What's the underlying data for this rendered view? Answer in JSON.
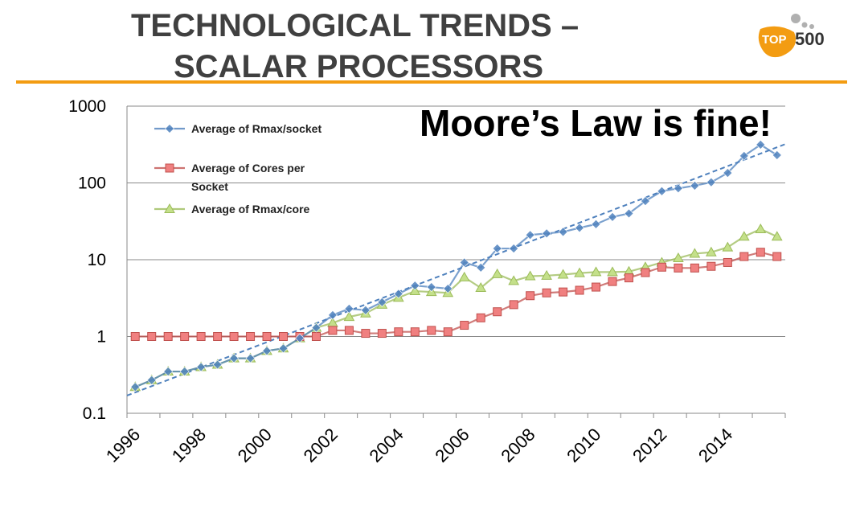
{
  "header": {
    "title_line1": "TECHNOLOGICAL TRENDS –",
    "title_line2": "SCALAR PROCESSORS",
    "logo_text_top": "TOP",
    "logo_text_num": "500",
    "accent_color": "#f39c12"
  },
  "chart_data": {
    "type": "line",
    "title": "Moore’s Law is fine!",
    "y_scale": "log",
    "ylim": [
      0.1,
      1000
    ],
    "y_ticks": [
      "0.1",
      "1",
      "10",
      "100",
      "1000"
    ],
    "y_tick_values": [
      0.1,
      1,
      10,
      100,
      1000
    ],
    "xlim": [
      1996,
      2016
    ],
    "x_ticks": [
      "1996",
      "1998",
      "2000",
      "2002",
      "2004",
      "2006",
      "2008",
      "2010",
      "2012",
      "2014"
    ],
    "x_tick_values": [
      1996,
      1998,
      2000,
      2002,
      2004,
      2006,
      2008,
      2010,
      2012,
      2014
    ],
    "grid": true,
    "legend_position": "top-left",
    "x": [
      1996.25,
      1996.75,
      1997.25,
      1997.75,
      1998.25,
      1998.75,
      1999.25,
      1999.75,
      2000.25,
      2000.75,
      2001.25,
      2001.75,
      2002.25,
      2002.75,
      2003.25,
      2003.75,
      2004.25,
      2004.75,
      2005.25,
      2005.75,
      2006.25,
      2006.75,
      2007.25,
      2007.75,
      2008.25,
      2008.75,
      2009.25,
      2009.75,
      2010.25,
      2010.75,
      2011.25,
      2011.75,
      2012.25,
      2012.75,
      2013.25,
      2013.75,
      2014.25,
      2014.75,
      2015.25,
      2015.75
    ],
    "series": [
      {
        "name": "Average of Rmax/socket",
        "color": "#4f81bd",
        "marker": "diamond",
        "values": [
          0.22,
          0.27,
          0.35,
          0.35,
          0.4,
          0.43,
          0.52,
          0.52,
          0.65,
          0.7,
          0.95,
          1.3,
          1.9,
          2.3,
          2.2,
          2.8,
          3.6,
          4.6,
          4.4,
          4.2,
          9.2,
          7.9,
          14,
          14,
          21,
          22,
          23,
          26,
          29,
          36,
          40,
          58,
          78,
          85,
          92,
          102,
          135,
          225,
          315,
          230
        ]
      },
      {
        "name": "Average of Cores per Socket",
        "color": "#c0504d",
        "marker": "square",
        "values": [
          1.0,
          1.0,
          1.0,
          1.0,
          1.0,
          1.0,
          1.0,
          1.0,
          1.0,
          1.0,
          1.0,
          1.0,
          1.2,
          1.2,
          1.1,
          1.1,
          1.15,
          1.15,
          1.2,
          1.15,
          1.4,
          1.75,
          2.1,
          2.6,
          3.4,
          3.7,
          3.8,
          4.0,
          4.4,
          5.2,
          5.8,
          6.8,
          8.0,
          7.8,
          7.8,
          8.2,
          9.2,
          11,
          12.5,
          11
        ]
      },
      {
        "name": "Average of Rmax/core",
        "color": "#9bbb59",
        "marker": "triangle",
        "values": [
          0.22,
          0.27,
          0.35,
          0.35,
          0.4,
          0.43,
          0.52,
          0.52,
          0.65,
          0.7,
          0.95,
          1.3,
          1.5,
          1.8,
          2.0,
          2.6,
          3.2,
          3.9,
          3.8,
          3.7,
          5.9,
          4.3,
          6.5,
          5.3,
          6.1,
          6.2,
          6.4,
          6.7,
          6.9,
          6.9,
          7.0,
          8.0,
          9.2,
          10.5,
          12,
          12.5,
          14.5,
          20,
          25,
          20
        ]
      }
    ],
    "trendline": {
      "style": "dashed",
      "color": "#4f81bd",
      "x": [
        1996,
        2016
      ],
      "values": [
        0.17,
        320
      ]
    }
  }
}
